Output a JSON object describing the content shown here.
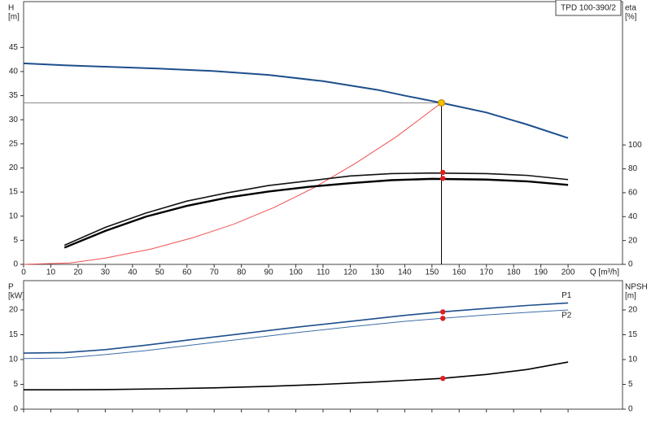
{
  "chart_data": [
    {
      "type": "line",
      "title": "TPD 100-390/2",
      "ylabel": "H",
      "yunit": "[m]",
      "y2label": "eta",
      "y2unit": "[%]",
      "xlabel": "Q [m³/h]",
      "xlim": [
        0,
        220
      ],
      "xticks": [
        0,
        10,
        20,
        30,
        40,
        50,
        60,
        70,
        80,
        90,
        100,
        110,
        120,
        130,
        140,
        150,
        160,
        170,
        180,
        190,
        200
      ],
      "ylim": [
        0,
        54.5
      ],
      "yticks": [
        0,
        5,
        10,
        15,
        20,
        25,
        30,
        35,
        40,
        45
      ],
      "y2lim": [
        0,
        220
      ],
      "y2ticks": [
        0,
        20,
        40,
        60,
        80,
        100
      ],
      "grid": false,
      "series": [
        {
          "color": "#1d4f8c",
          "width": 2,
          "x": [
            0,
            15,
            30,
            50,
            70,
            90,
            110,
            130,
            140,
            153.5,
            170,
            185,
            200
          ],
          "values": [
            41.7,
            41.3,
            41.0,
            40.6,
            40.1,
            39.3,
            38.0,
            36.2,
            35.0,
            33.5,
            31.5,
            29.0,
            26.2
          ]
        },
        {
          "color": "#f05050",
          "width": 1,
          "x": [
            0,
            17,
            30,
            47,
            62,
            77,
            92,
            107,
            122,
            137,
            153.5
          ],
          "values": [
            0,
            0.3,
            1.3,
            3.2,
            5.5,
            8.3,
            11.8,
            16,
            21,
            26.5,
            33.5
          ]
        },
        {
          "color": "#111111",
          "width": 1.6,
          "axis": "y2",
          "x": [
            15,
            30,
            45,
            60,
            75,
            90,
            105,
            120,
            135,
            150,
            170,
            185,
            200
          ],
          "values": [
            16,
            31,
            43,
            53,
            60,
            66,
            70,
            74,
            76,
            76.5,
            76,
            74.5,
            71
          ]
        },
        {
          "color": "#000000",
          "width": 2.4,
          "axis": "y2",
          "x": [
            15,
            30,
            45,
            60,
            75,
            90,
            105,
            120,
            135,
            150,
            170,
            185,
            200
          ],
          "values": [
            14,
            28,
            40,
            49,
            56,
            61,
            65,
            68,
            70.5,
            71.6,
            71,
            69.5,
            66.5
          ]
        }
      ],
      "duty_point": {
        "x": 153.5,
        "y": 33.5,
        "color": "#f5c000"
      },
      "markers": [
        {
          "x": 154,
          "y": 77,
          "axis": "y2",
          "color": "#e02020"
        },
        {
          "x": 154,
          "y": 72,
          "axis": "y2",
          "color": "#e02020"
        }
      ]
    },
    {
      "type": "line",
      "ylabel": "P",
      "yunit": "[kW]",
      "y2label": "NPSH",
      "y2unit": "[m]",
      "xlim": [
        0,
        220
      ],
      "ylim": [
        0,
        25.9
      ],
      "yticks": [
        0,
        5,
        10,
        15,
        20
      ],
      "y2lim": [
        0,
        25.9
      ],
      "y2ticks": [
        0,
        5,
        10,
        15,
        20
      ],
      "grid": false,
      "series": [
        {
          "name": "P1",
          "color": "#1d4f8c",
          "width": 1.6,
          "x": [
            0,
            15,
            30,
            45,
            60,
            80,
            100,
            120,
            140,
            153.5,
            170,
            185,
            200
          ],
          "values": [
            11.3,
            11.4,
            12.0,
            12.9,
            13.9,
            15.2,
            16.5,
            17.7,
            18.9,
            19.6,
            20.3,
            20.9,
            21.4
          ]
        },
        {
          "name": "P2",
          "color": "#3d6ea8",
          "width": 1,
          "x": [
            0,
            15,
            30,
            45,
            60,
            80,
            100,
            120,
            140,
            153.5,
            170,
            185,
            200
          ],
          "values": [
            10.2,
            10.3,
            11.0,
            11.8,
            12.8,
            14.1,
            15.4,
            16.6,
            17.7,
            18.3,
            19.0,
            19.5,
            20.0
          ]
        },
        {
          "color": "#000000",
          "width": 1.6,
          "axis": "y2",
          "x": [
            0,
            15,
            30,
            50,
            70,
            90,
            110,
            130,
            153.5,
            170,
            185,
            200
          ],
          "values": [
            3.9,
            3.9,
            3.95,
            4.1,
            4.3,
            4.6,
            5.0,
            5.5,
            6.2,
            7.0,
            8.0,
            9.5
          ]
        }
      ],
      "markers": [
        {
          "x": 154,
          "y": 19.6,
          "color": "#e02020"
        },
        {
          "x": 154,
          "y": 18.3,
          "color": "#e02020"
        },
        {
          "x": 154,
          "y": 6.2,
          "axis": "y2",
          "color": "#e02020"
        }
      ]
    }
  ]
}
